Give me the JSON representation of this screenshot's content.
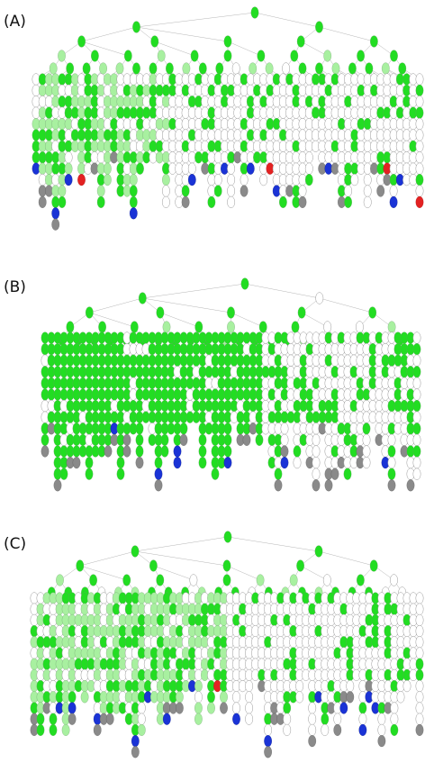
{
  "panels": [
    {
      "id": "a",
      "label": "(A)"
    },
    {
      "id": "b",
      "label": "(B)"
    },
    {
      "id": "c",
      "label": "(C)"
    }
  ],
  "legend_colors": {
    "green": "#22dd22",
    "light_green": "#a8f0a0",
    "white": "#ffffff",
    "red": "#e32222",
    "blue": "#1a33d6",
    "gray": "#8a8a8a"
  }
}
